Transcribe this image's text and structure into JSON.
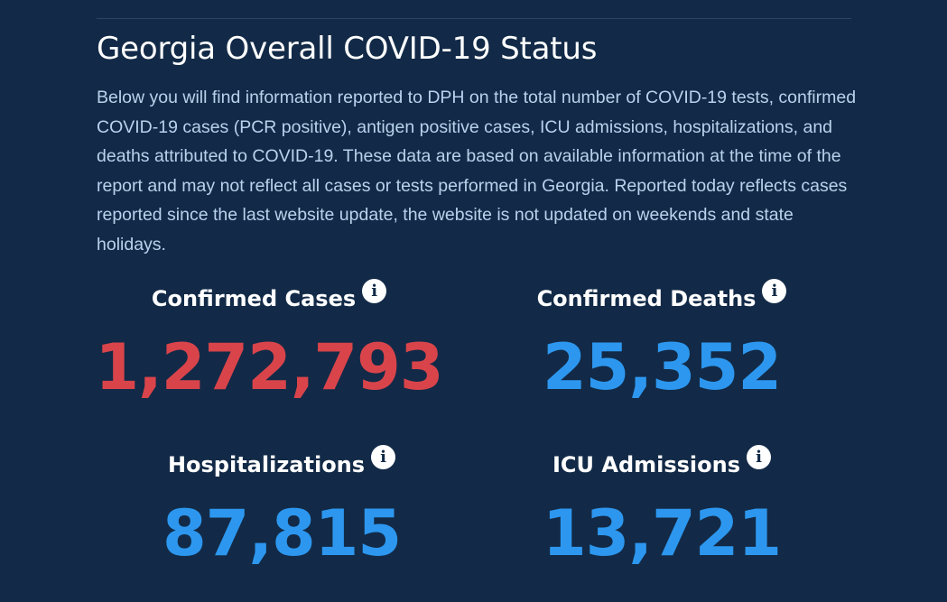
{
  "header": {
    "title": "Georgia Overall COVID-19 Status",
    "description": "Below you will find information reported to DPH on the total number of COVID-19 tests, confirmed COVID-19 cases (PCR positive), antigen positive cases, ICU admissions, hospitalizations, and deaths attributed to COVID-19. These data are based on available information at the time of the report and may not reflect all cases or tests performed in Georgia. Reported today reflects cases reported since the last website update, the website is not updated on weekends and state holidays."
  },
  "stats": {
    "confirmed_cases": {
      "label": "Confirmed Cases",
      "value": "1,272,793",
      "color": "#d9444b",
      "icon": "info-icon"
    },
    "confirmed_deaths": {
      "label": "Confirmed Deaths",
      "value": "25,352",
      "color": "#2d97ef",
      "icon": "info-icon"
    },
    "hospitalizations": {
      "label": "Hospitalizations",
      "value": "87,815",
      "color": "#2d97ef",
      "icon": "info-icon"
    },
    "icu_admissions": {
      "label": "ICU Admissions",
      "value": "13,721",
      "color": "#2d97ef",
      "icon": "info-icon"
    }
  },
  "icons": {
    "info_glyph": "i"
  },
  "colors": {
    "background": "#122a47",
    "description": "#b9d2ec"
  }
}
